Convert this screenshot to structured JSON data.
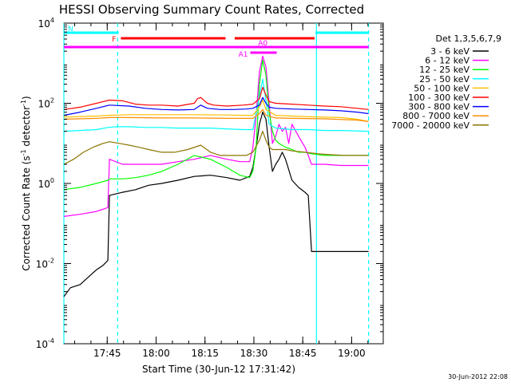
{
  "chart_data": {
    "type": "line",
    "title": "HESSI Observing Summary Count Rates, Corrected",
    "xlabel": "Start Time (30-Jun-12 17:31:42)",
    "ylabel_main": "Corrected Count Rate (s",
    "ylabel_sup1": "-1",
    "ylabel_mid": " detector",
    "ylabel_sup2": "-1",
    "ylabel_end": ")",
    "yscale": "log",
    "ylim": [
      0.0001,
      10000
    ],
    "xlim_min": [
      0,
      98
    ],
    "y_ticks": [
      {
        "value": 0.0001,
        "base": "10",
        "exp": "-4"
      },
      {
        "value": 0.01,
        "base": "10",
        "exp": "-2"
      },
      {
        "value": 1,
        "base": "10",
        "exp": "0"
      },
      {
        "value": 100,
        "base": "10",
        "exp": "2"
      },
      {
        "value": 10000,
        "base": "10",
        "exp": "4"
      }
    ],
    "x_ticks": [
      {
        "min": 13.3,
        "label": "17:45"
      },
      {
        "min": 28.3,
        "label": "18:00"
      },
      {
        "min": 43.3,
        "label": "18:15"
      },
      {
        "min": 58.3,
        "label": "18:30"
      },
      {
        "min": 73.3,
        "label": "18:45"
      },
      {
        "min": 88.3,
        "label": "19:00"
      }
    ],
    "legend_title": "Det 1,3,5,6,7,9",
    "series": [
      {
        "name": "3 - 6 keV",
        "color": "#000000",
        "x": [
          0,
          2,
          5,
          8,
          10,
          12,
          13.5,
          14,
          18,
          22,
          26,
          30,
          35,
          40,
          45,
          50,
          54,
          57,
          58,
          59,
          60,
          61,
          62,
          63,
          64,
          65,
          66,
          67,
          68,
          70,
          72,
          74,
          75,
          76,
          78,
          82,
          86,
          90,
          93.5
        ],
        "y": [
          0.0015,
          0.0025,
          0.003,
          0.005,
          0.007,
          0.009,
          0.012,
          0.5,
          0.6,
          0.7,
          0.9,
          1.0,
          1.2,
          1.5,
          1.6,
          1.4,
          1.2,
          1.5,
          2.5,
          8,
          30,
          60,
          40,
          8,
          2,
          3,
          4,
          6,
          4,
          1.2,
          0.8,
          0.6,
          0.5,
          0.02,
          0.02,
          0.02,
          0.02,
          0.02,
          0.02
        ]
      },
      {
        "name": "6 - 12 keV",
        "color": "#ff00ff",
        "x": [
          0,
          5,
          10,
          13.5,
          14,
          18,
          22,
          26,
          30,
          35,
          40,
          45,
          50,
          54,
          57,
          58,
          59,
          60,
          61,
          62,
          63,
          64,
          65,
          66,
          67,
          68,
          69,
          70,
          72,
          74,
          75,
          76,
          80,
          85,
          90,
          93.5
        ],
        "y": [
          0.15,
          0.17,
          0.2,
          0.25,
          4,
          3,
          3,
          3,
          3,
          3.5,
          4,
          5,
          4,
          3.5,
          3.5,
          8,
          50,
          600,
          1500,
          800,
          100,
          10,
          15,
          30,
          20,
          25,
          10,
          30,
          15,
          8,
          5,
          3,
          3,
          2.8,
          2.8,
          2.8
        ]
      },
      {
        "name": "12 - 25 keV",
        "color": "#00ff00",
        "x": [
          0,
          5,
          10,
          13.5,
          14,
          18,
          22,
          26,
          30,
          35,
          40,
          45,
          50,
          54,
          57,
          58,
          59,
          60,
          61,
          62,
          63,
          64,
          65,
          66,
          68,
          70,
          72,
          74,
          76,
          80,
          85,
          90,
          93.5
        ],
        "y": [
          0.7,
          0.8,
          1.0,
          1.2,
          1.3,
          1.3,
          1.4,
          1.6,
          2,
          3,
          5,
          4,
          2.5,
          1.6,
          1.4,
          2,
          8,
          300,
          1200,
          500,
          60,
          20,
          12,
          10,
          8,
          7,
          6,
          6,
          5.5,
          5,
          5,
          5,
          5
        ]
      },
      {
        "name": "25 - 50 keV",
        "color": "#00ffff",
        "x": [
          0,
          10,
          13.5,
          16,
          20,
          25,
          30,
          35,
          40,
          45,
          50,
          55,
          58,
          60,
          61,
          62,
          63,
          65,
          70,
          75,
          80,
          85,
          93.5
        ],
        "y": [
          20,
          22,
          25,
          26,
          26,
          25,
          25,
          24,
          24,
          24,
          23,
          22,
          22,
          150,
          400,
          120,
          30,
          24,
          22,
          22,
          21,
          21,
          20
        ]
      },
      {
        "name": "50 - 100 keV",
        "color": "#ffbf00",
        "x": [
          0,
          10,
          13.5,
          20,
          30,
          40,
          50,
          55,
          58,
          60,
          61,
          62,
          65,
          70,
          75,
          80,
          85,
          90,
          93.5
        ],
        "y": [
          45,
          48,
          50,
          52,
          52,
          52,
          51,
          50,
          50,
          80,
          120,
          70,
          50,
          48,
          46,
          45,
          44,
          40,
          35
        ]
      },
      {
        "name": "100 - 300 keV",
        "color": "#ff0000",
        "x": [
          0,
          5,
          10,
          14,
          18,
          22,
          26,
          30,
          35,
          40,
          41,
          42,
          44,
          46,
          50,
          55,
          58,
          60,
          61,
          62,
          63,
          65,
          70,
          75,
          80,
          85,
          90,
          93.5
        ],
        "y": [
          70,
          80,
          100,
          120,
          115,
          95,
          90,
          90,
          85,
          100,
          130,
          140,
          100,
          90,
          85,
          90,
          95,
          130,
          250,
          160,
          110,
          100,
          95,
          90,
          85,
          82,
          75,
          70
        ]
      },
      {
        "name": "300 - 800 keV",
        "color": "#0000ff",
        "x": [
          0,
          5,
          10,
          14,
          20,
          25,
          30,
          35,
          40,
          42,
          44,
          48,
          52,
          56,
          58,
          60,
          61,
          62,
          63,
          65,
          70,
          75,
          80,
          85,
          90,
          93.5
        ],
        "y": [
          50,
          60,
          75,
          90,
          85,
          75,
          70,
          68,
          70,
          90,
          75,
          70,
          70,
          72,
          75,
          90,
          140,
          100,
          80,
          75,
          72,
          70,
          68,
          65,
          60,
          55
        ]
      },
      {
        "name": "800 - 7000 keV",
        "color": "#ff8c00",
        "x": [
          0,
          10,
          14,
          20,
          30,
          40,
          50,
          58,
          60,
          61,
          62,
          65,
          70,
          80,
          90,
          93.5
        ],
        "y": [
          40,
          42,
          44,
          44,
          43,
          43,
          42,
          42,
          55,
          70,
          50,
          43,
          42,
          41,
          38,
          35
        ]
      },
      {
        "name": "7000 - 20000 keV",
        "color": "#8b7500",
        "x": [
          0,
          3,
          6,
          9,
          12,
          14,
          17,
          20,
          23,
          26,
          30,
          34,
          38,
          42,
          45,
          48,
          52,
          56,
          58,
          60,
          61,
          62,
          63,
          64,
          66,
          68,
          70,
          74,
          78,
          82,
          86,
          90,
          93.5
        ],
        "y": [
          3,
          4,
          6,
          8,
          10,
          11,
          10,
          9,
          8,
          7,
          6,
          6,
          7,
          9,
          6,
          5,
          5,
          5,
          6,
          12,
          20,
          12,
          8,
          7,
          7,
          7,
          6.5,
          6,
          5.5,
          5.2,
          5,
          5,
          5
        ]
      }
    ],
    "flags": [
      {
        "label": "N",
        "color": "#00ffff",
        "segments": [
          [
            0,
            16.8
          ],
          [
            77.2,
            93.5
          ]
        ]
      },
      {
        "label": "F",
        "color": "#ff0000",
        "segments": [
          [
            17.5,
            49.6
          ],
          [
            52.4,
            76.9
          ]
        ]
      },
      {
        "label": "",
        "color": "#ff00ff",
        "segments": [
          [
            0,
            93.5
          ]
        ]
      },
      {
        "label": "A1",
        "color": "#ff00ff",
        "segments": [
          [
            57.2,
            65.3
          ]
        ]
      },
      {
        "label": "A0",
        "color": "#ff00ff",
        "segments": [
          [
            59.6,
            63.5
          ]
        ]
      }
    ],
    "vlines": [
      {
        "min": 0,
        "style": "solid"
      },
      {
        "min": 16.5,
        "style": "dashed"
      },
      {
        "min": 77.5,
        "style": "solid"
      },
      {
        "min": 93.5,
        "style": "dashed"
      }
    ]
  },
  "footer": {
    "timestamp": "30-Jun-2012 22:08"
  }
}
